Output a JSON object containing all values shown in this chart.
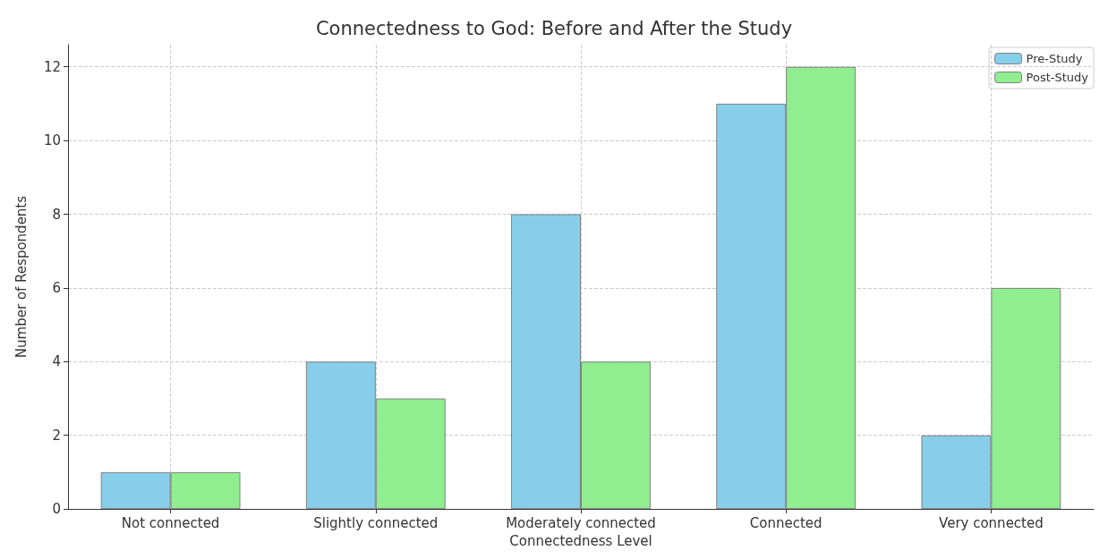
{
  "chart_data": {
    "type": "bar",
    "title": "Connectedness to God: Before and After the Study",
    "xlabel": "Connectedness Level",
    "ylabel": "Number of Respondents",
    "categories": [
      "Not connected",
      "Slightly connected",
      "Moderately connected",
      "Connected",
      "Very connected"
    ],
    "series": [
      {
        "name": "Pre-Study",
        "color": "#87ceeb",
        "values": [
          1,
          4,
          8,
          11,
          2
        ]
      },
      {
        "name": "Post-Study",
        "color": "#90ee90",
        "values": [
          1,
          3,
          4,
          12,
          6
        ]
      }
    ],
    "ylim": [
      0,
      12.6
    ],
    "yticks": [
      0,
      2,
      4,
      6,
      8,
      10,
      12
    ],
    "grid": true,
    "legend": "top right"
  }
}
